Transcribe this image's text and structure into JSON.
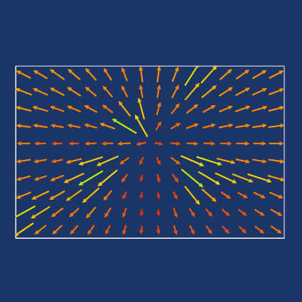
{
  "chart_data": {
    "type": "quiver",
    "xlim": [
      0,
      16
    ],
    "ylim": [
      0,
      10
    ],
    "tick_labels": false,
    "grid": false,
    "magnitude_range": [
      0,
      1
    ],
    "x": [
      0.5,
      1.5,
      2.5,
      3.5,
      4.5,
      5.5,
      6.5,
      7.5,
      8.5,
      9.5,
      10.5,
      11.5,
      12.5,
      13.5,
      14.5,
      15.5
    ],
    "y": [
      9.5,
      8.5,
      7.5,
      6.5,
      5.5,
      4.5,
      3.5,
      2.5,
      1.5,
      0.5
    ],
    "u": [
      [
        -0.89,
        -0.86,
        -0.82,
        -0.76,
        -0.67,
        -0.54,
        -0.36,
        -0.13,
        0.13,
        0.36,
        0.54,
        0.67,
        0.76,
        0.82,
        0.86,
        0.89
      ],
      [
        -0.93,
        -0.91,
        -0.88,
        -0.84,
        -0.77,
        -0.65,
        -0.46,
        -0.17,
        0.17,
        0.46,
        0.65,
        0.77,
        0.84,
        0.88,
        0.91,
        0.93
      ],
      [
        -0.97,
        -0.96,
        -0.94,
        -0.92,
        -0.88,
        -0.8,
        -0.62,
        -0.26,
        0.26,
        0.62,
        0.8,
        0.88,
        0.92,
        0.94,
        0.96,
        0.97
      ],
      [
        -0.99,
        -0.99,
        -0.99,
        -0.98,
        -0.97,
        -0.94,
        -0.86,
        -0.49,
        0.49,
        0.86,
        0.94,
        0.97,
        0.98,
        0.99,
        0.99,
        0.99
      ],
      [
        -1,
        -1,
        -1,
        -1,
        -1,
        -1,
        -1,
        -0.98,
        0.98,
        1,
        1,
        1,
        1,
        1,
        1,
        1
      ],
      [
        -0.99,
        -0.99,
        -0.98,
        -0.97,
        -0.95,
        -0.92,
        -0.81,
        -0.41,
        0.41,
        0.81,
        0.92,
        0.95,
        0.97,
        0.98,
        0.99,
        0.99
      ],
      [
        -0.96,
        -0.95,
        -0.93,
        -0.91,
        -0.86,
        -0.77,
        -0.58,
        -0.23,
        0.23,
        0.58,
        0.77,
        0.86,
        0.91,
        0.93,
        0.95,
        0.96
      ],
      [
        -0.92,
        -0.9,
        -0.87,
        -0.82,
        -0.75,
        -0.63,
        -0.44,
        -0.16,
        0.16,
        0.44,
        0.63,
        0.75,
        0.82,
        0.87,
        0.9,
        0.92
      ],
      [
        -0.88,
        -0.85,
        -0.8,
        -0.74,
        -0.65,
        -0.52,
        -0.34,
        -0.12,
        0.12,
        0.34,
        0.52,
        0.65,
        0.74,
        0.8,
        0.85,
        0.88
      ],
      [
        -0.83,
        -0.79,
        -0.73,
        -0.66,
        -0.57,
        -0.44,
        -0.28,
        -0.1,
        0.1,
        0.28,
        0.44,
        0.57,
        0.66,
        0.73,
        0.79,
        0.83
      ]
    ],
    "v": [
      [
        0.46,
        0.51,
        0.58,
        0.66,
        0.74,
        0.84,
        0.93,
        0.99,
        0.99,
        0.93,
        0.84,
        0.74,
        0.66,
        0.58,
        0.51,
        0.46
      ],
      [
        0.36,
        0.41,
        0.47,
        0.54,
        0.64,
        0.76,
        0.89,
        0.99,
        0.99,
        0.89,
        0.76,
        0.64,
        0.54,
        0.47,
        0.41,
        0.36
      ],
      [
        0.25,
        0.28,
        0.33,
        0.39,
        0.48,
        0.61,
        0.79,
        0.97,
        0.97,
        0.79,
        0.61,
        0.48,
        0.39,
        0.33,
        0.28,
        0.25
      ],
      [
        0.12,
        0.14,
        0.16,
        0.2,
        0.25,
        0.34,
        0.51,
        0.87,
        0.87,
        0.51,
        0.34,
        0.25,
        0.2,
        0.16,
        0.14,
        0.12
      ],
      [
        -0.01,
        -0.02,
        -0.02,
        -0.02,
        -0.03,
        -0.04,
        -0.07,
        -0.2,
        -0.2,
        -0.07,
        -0.04,
        -0.03,
        -0.02,
        -0.02,
        -0.02,
        -0.01
      ],
      [
        -0.15,
        -0.17,
        -0.2,
        -0.24,
        -0.3,
        -0.4,
        -0.59,
        -0.91,
        -0.91,
        -0.59,
        -0.4,
        -0.3,
        -0.24,
        -0.2,
        -0.17,
        -0.15
      ],
      [
        -0.27,
        -0.31,
        -0.36,
        -0.42,
        -0.51,
        -0.64,
        -0.81,
        -0.97,
        -0.97,
        -0.81,
        -0.64,
        -0.51,
        -0.42,
        -0.36,
        -0.31,
        -0.27
      ],
      [
        -0.38,
        -0.43,
        -0.49,
        -0.57,
        -0.66,
        -0.78,
        -0.9,
        -0.99,
        -0.99,
        -0.9,
        -0.78,
        -0.66,
        -0.57,
        -0.49,
        -0.43,
        -0.38
      ],
      [
        -0.48,
        -0.53,
        -0.6,
        -0.67,
        -0.76,
        -0.85,
        -0.94,
        -0.99,
        -0.99,
        -0.94,
        -0.85,
        -0.76,
        -0.67,
        -0.6,
        -0.53,
        -0.48
      ],
      [
        -0.56,
        -0.62,
        -0.68,
        -0.75,
        -0.82,
        -0.9,
        -0.96,
        -1,
        -1,
        -0.96,
        -0.9,
        -0.82,
        -0.75,
        -0.68,
        -0.62,
        -0.56
      ]
    ],
    "magnitude": [
      [
        0.5,
        0.5,
        0.55,
        0.5,
        0.5,
        0.45,
        0.45,
        0.5,
        0.5,
        0.5,
        0.85,
        0.75,
        0.5,
        0.5,
        0.5,
        0.5
      ],
      [
        0.55,
        0.5,
        0.5,
        0.5,
        0.45,
        0.45,
        0.4,
        0.4,
        0.4,
        0.45,
        0.7,
        0.6,
        0.5,
        0.5,
        0.5,
        0.5
      ],
      [
        0.5,
        0.5,
        0.45,
        0.45,
        0.45,
        0.4,
        0.6,
        0.7,
        0.4,
        0.4,
        0.45,
        0.45,
        0.45,
        0.5,
        0.5,
        0.5
      ],
      [
        0.45,
        0.45,
        0.4,
        0.4,
        0.4,
        0.5,
        0.9,
        0.8,
        0.3,
        0.35,
        0.4,
        0.4,
        0.45,
        0.45,
        0.45,
        0.5
      ],
      [
        0.4,
        0.35,
        0.3,
        0.3,
        0.35,
        0.35,
        0.4,
        0.3,
        0.25,
        0.3,
        0.35,
        0.35,
        0.35,
        0.4,
        0.4,
        0.45
      ],
      [
        0.45,
        0.4,
        0.35,
        0.5,
        0.8,
        0.75,
        0.35,
        0.25,
        0.25,
        0.35,
        0.8,
        0.85,
        0.6,
        0.45,
        0.45,
        0.5
      ],
      [
        0.45,
        0.4,
        0.45,
        0.7,
        0.9,
        0.8,
        0.3,
        0.2,
        0.25,
        0.3,
        0.9,
        0.8,
        0.75,
        0.7,
        0.8,
        0.55
      ],
      [
        0.5,
        0.6,
        0.55,
        0.6,
        0.7,
        0.4,
        0.25,
        0.2,
        0.2,
        0.25,
        0.75,
        0.6,
        0.35,
        0.35,
        0.4,
        0.45
      ],
      [
        0.85,
        0.7,
        0.45,
        0.4,
        0.45,
        0.35,
        0.3,
        0.2,
        0.2,
        0.3,
        0.3,
        0.3,
        0.3,
        0.3,
        0.35,
        0.4
      ],
      [
        0.75,
        0.45,
        0.4,
        0.35,
        0.35,
        0.3,
        0.3,
        0.25,
        0.25,
        0.3,
        0.3,
        0.3,
        0.3,
        0.3,
        0.35,
        0.4
      ]
    ]
  }
}
